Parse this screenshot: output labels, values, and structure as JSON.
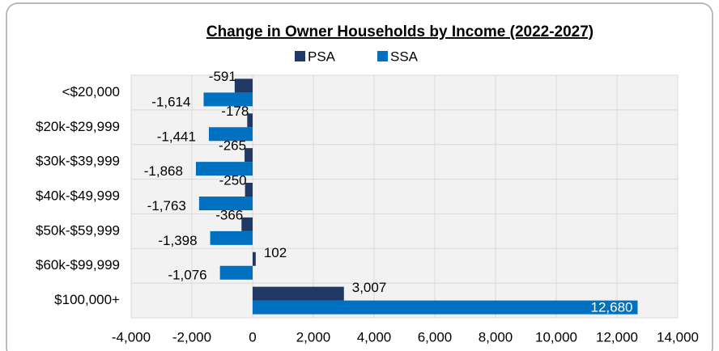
{
  "chart_data": {
    "type": "hbar",
    "title": "Change in Owner Households by Income (2022-2027)",
    "categories": [
      "<$20,000",
      "$20k-$29,999",
      "$30k-$39,999",
      "$40k-$49,999",
      "$50k-$59,999",
      "$60k-$99,999",
      "$100,000+"
    ],
    "series": [
      {
        "name": "PSA",
        "color": "#1f3864",
        "values": [
          -591,
          -178,
          -265,
          -250,
          -366,
          102,
          3007
        ],
        "value_labels": [
          "-591",
          "-178",
          "-265",
          "-250",
          "-366",
          "102",
          "3,007"
        ]
      },
      {
        "name": "SSA",
        "color": "#0070c0",
        "values": [
          -1614,
          -1441,
          -1868,
          -1763,
          -1398,
          -1076,
          12680
        ],
        "value_labels": [
          "-1,614",
          "-1,441",
          "-1,868",
          "-1,763",
          "-1,398",
          "-1,076",
          "12,680"
        ]
      }
    ],
    "xlim": [
      -4000,
      14000
    ],
    "xticks": [
      {
        "value": -4000,
        "label": "-4,000"
      },
      {
        "value": -2000,
        "label": "-2,000"
      },
      0,
      {
        "value": 2000,
        "label": "2,000"
      },
      {
        "value": 4000,
        "label": "4,000"
      },
      {
        "value": 6000,
        "label": "6,000"
      },
      {
        "value": 8000,
        "label": "8,000"
      },
      {
        "value": 10000,
        "label": "10,000"
      },
      {
        "value": 12000,
        "label": "12,000"
      },
      {
        "value": 14000,
        "label": "14,000"
      }
    ],
    "grid": true,
    "legend": "top"
  }
}
